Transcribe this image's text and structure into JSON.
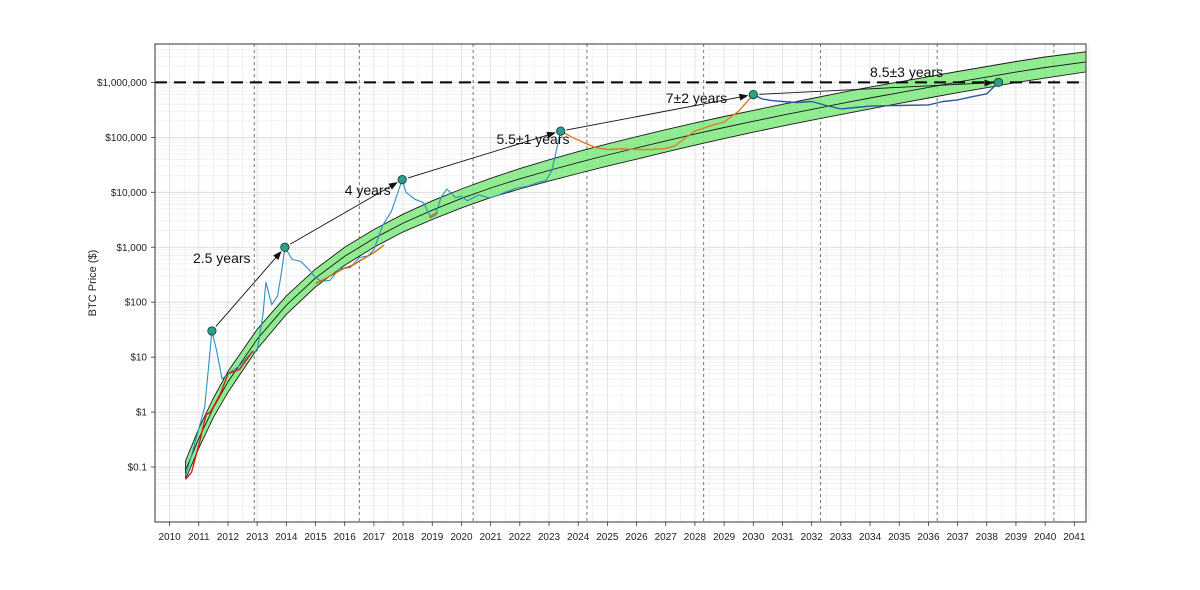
{
  "chart_data": {
    "type": "line",
    "ylabel": "BTC Price ($)",
    "yscale": "log",
    "ylim": [
      0.01,
      5000000
    ],
    "xlim": [
      2009.5,
      2041.4
    ],
    "x_ticks": [
      "2010",
      "2011",
      "2012",
      "2013",
      "2014",
      "2015",
      "2016",
      "2017",
      "2018",
      "2019",
      "2020",
      "2021",
      "2022",
      "2023",
      "2024",
      "2025",
      "2026",
      "2027",
      "2028",
      "2029",
      "2030",
      "2031",
      "2032",
      "2033",
      "2034",
      "2035",
      "2036",
      "2037",
      "2038",
      "2039",
      "2040",
      "2041"
    ],
    "y_ticks": [
      {
        "value": 0.1,
        "label": "$0.1"
      },
      {
        "value": 1,
        "label": "$1"
      },
      {
        "value": 10,
        "label": "$10"
      },
      {
        "value": 100,
        "label": "$100"
      },
      {
        "value": 1000,
        "label": "$1,000"
      },
      {
        "value": 10000,
        "label": "$10,000"
      },
      {
        "value": 100000,
        "label": "$100,000"
      },
      {
        "value": 1000000,
        "label": "$1,000,000"
      }
    ],
    "grid": true,
    "halving_lines": [
      2012.9,
      2016.5,
      2020.4,
      2024.3,
      2028.3,
      2032.3,
      2036.3,
      2040.3
    ],
    "reference_line": {
      "value": 1000000,
      "style": "dashed"
    },
    "band": {
      "x": [
        2010.55,
        2011,
        2011.5,
        2012,
        2013,
        2014,
        2015,
        2016,
        2017,
        2018,
        2019,
        2020,
        2021,
        2022,
        2023,
        2024,
        2025,
        2026,
        2027,
        2028,
        2029,
        2030,
        2031,
        2032,
        2033,
        2034,
        2035,
        2036,
        2037,
        2038,
        2039,
        2040,
        2041.4
      ],
      "lower": [
        0.06,
        0.22,
        0.8,
        2.3,
        14,
        60,
        190,
        470,
        1000,
        1900,
        3200,
        5200,
        8000,
        11500,
        16000,
        22000,
        30000,
        40000,
        54000,
        72000,
        95000,
        124000,
        160000,
        205000,
        260000,
        330000,
        415000,
        520000,
        650000,
        800000,
        990000,
        1200000,
        1550000
      ],
      "upper": [
        0.13,
        0.5,
        1.8,
        5.5,
        32,
        130,
        400,
        1000,
        2100,
        4000,
        7000,
        11500,
        18000,
        27000,
        39000,
        55000,
        76000,
        103000,
        138000,
        183000,
        240000,
        310000,
        400000,
        510000,
        650000,
        820000,
        1020000,
        1270000,
        1580000,
        1950000,
        2400000,
        2900000,
        3600000
      ]
    },
    "series": [
      {
        "color": "#2a8fc8",
        "x": [
          2010.55,
          2010.8,
          2011.0,
          2011.2,
          2011.35,
          2011.45,
          2011.6,
          2011.8,
          2012.0,
          2012.4,
          2012.8,
          2013.0,
          2013.2,
          2013.3,
          2013.5,
          2013.7,
          2013.85,
          2013.95,
          2014.2,
          2014.5,
          2014.8,
          2015.0,
          2015.2,
          2015.5,
          2015.8,
          2016.2,
          2016.5,
          2016.8,
          2017.0,
          2017.3,
          2017.6,
          2017.85,
          2017.97,
          2018.1,
          2018.4,
          2018.7,
          2018.95,
          2019.1,
          2019.3,
          2019.5,
          2019.8,
          2020.0,
          2020.2,
          2020.6,
          2020.9,
          2021.0,
          2021.3,
          2021.5,
          2021.9,
          2022.3,
          2022.6,
          2022.9,
          2023.1,
          2023.4
        ],
        "y": [
          0.07,
          0.2,
          0.5,
          1.2,
          8,
          30,
          14,
          4,
          5,
          7,
          12,
          13,
          60,
          230,
          90,
          130,
          400,
          1000,
          600,
          550,
          380,
          280,
          240,
          250,
          400,
          430,
          650,
          700,
          900,
          2500,
          4500,
          11000,
          17000,
          10000,
          7500,
          6500,
          3500,
          3800,
          8000,
          11500,
          8000,
          8500,
          7000,
          9000,
          8000,
          8000,
          9000,
          10000,
          12000,
          13000,
          15000,
          16500,
          25000,
          130000
        ]
      },
      {
        "color": "#dd1a1a",
        "x": [
          2010.55,
          2010.75,
          2011.0,
          2011.25,
          2011.4,
          2011.75,
          2012.0,
          2012.4,
          2012.85
        ],
        "y": [
          0.06,
          0.08,
          0.25,
          0.9,
          1.0,
          2.2,
          5,
          6,
          13
        ]
      },
      {
        "color": "#d06a00",
        "x": [
          2015.0,
          2015.3,
          2015.6,
          2016.0,
          2016.3,
          2016.6,
          2017.0,
          2017.35
        ],
        "y": [
          220,
          260,
          320,
          420,
          480,
          600,
          800,
          1100
        ]
      },
      {
        "color": "#d06a00",
        "x": [
          2018.9,
          2019.05,
          2019.2
        ],
        "y": [
          3500,
          4000,
          4200
        ]
      },
      {
        "color": "#e8782b",
        "x": [
          2023.4,
          2023.8,
          2024.2,
          2024.6,
          2025.0,
          2025.5,
          2026.0,
          2026.5,
          2027.0,
          2027.3,
          2027.7,
          2028.0,
          2028.5,
          2029.0,
          2029.5,
          2030.0
        ],
        "y": [
          130000,
          100000,
          80000,
          65000,
          60000,
          62000,
          60000,
          60000,
          63000,
          70000,
          100000,
          130000,
          160000,
          190000,
          300000,
          600000
        ]
      },
      {
        "color": "#2e5aa0",
        "x": [
          2030.0,
          2030.3,
          2030.6,
          2031.0,
          2031.5,
          2032.0,
          2032.5,
          2033.0,
          2033.5,
          2034.0,
          2035.0,
          2036.0,
          2036.5,
          2037.0,
          2037.5,
          2038.0,
          2038.4
        ],
        "y": [
          600000,
          500000,
          470000,
          450000,
          430000,
          450000,
          380000,
          330000,
          350000,
          370000,
          380000,
          390000,
          450000,
          480000,
          550000,
          620000,
          1000000
        ]
      }
    ],
    "peaks": [
      {
        "x": 2011.45,
        "y": 30
      },
      {
        "x": 2013.95,
        "y": 1000
      },
      {
        "x": 2017.97,
        "y": 17000
      },
      {
        "x": 2023.4,
        "y": 130000
      },
      {
        "x": 2030.0,
        "y": 600000
      },
      {
        "x": 2038.4,
        "y": 1000000
      }
    ],
    "annotations": [
      {
        "text": "2.5 years",
        "x": 2010.8,
        "y": 520
      },
      {
        "text": "4 years",
        "x": 2016.0,
        "y": 9000
      },
      {
        "text": "5.5±1 years",
        "x": 2021.2,
        "y": 75000
      },
      {
        "text": "7±2 years",
        "x": 2027.0,
        "y": 420000
      },
      {
        "text": "8.5±3  years",
        "x": 2034.0,
        "y": 1250000
      }
    ]
  }
}
